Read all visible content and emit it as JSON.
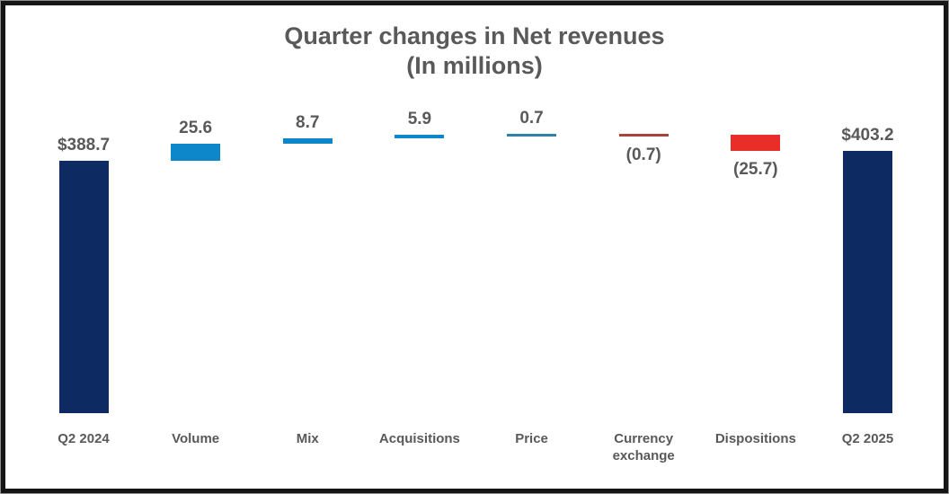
{
  "chart_data": {
    "type": "bar",
    "subtype": "waterfall",
    "title": "Quarter changes in Net revenues",
    "subtitle": "(In millions)",
    "categories": [
      "Q2 2024",
      "Volume",
      "Mix",
      "Acquisitions",
      "Price",
      "Currency exchange",
      "Dispositions",
      "Q2 2025"
    ],
    "values": [
      388.7,
      25.6,
      8.7,
      5.9,
      0.7,
      -0.7,
      -25.7,
      403.2
    ],
    "value_labels": [
      "$388.7",
      "25.6",
      "8.7",
      "5.9",
      "0.7",
      "(0.7)",
      "(25.7)",
      "$403.2"
    ],
    "bar_roles": [
      "total",
      "increase",
      "increase",
      "increase",
      "increase",
      "decrease",
      "decrease",
      "total"
    ],
    "bar_colors": [
      "#0e2a62",
      "#0d87c9",
      "#0d87c9",
      "#0d87c9",
      "#2e82a8",
      "#a8443b",
      "#e92d28",
      "#0e2a62"
    ],
    "value_axis_range": [
      0,
      440
    ],
    "grid": "off",
    "legend": "none",
    "label_color": "#595959",
    "title_color": "#595959"
  }
}
